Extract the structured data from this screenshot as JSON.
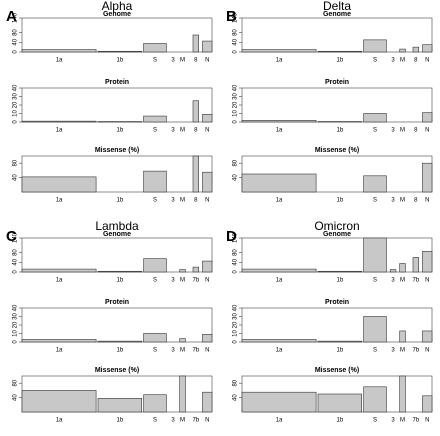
{
  "chart_data": [
    {
      "type": "bar",
      "title": "Alpha",
      "label": "A",
      "categories": [
        "1a",
        "1b",
        "S",
        "3",
        "M",
        "8",
        "N"
      ],
      "panels": [
        {
          "title": "Genome",
          "values": [
            10,
            3,
            35,
            null,
            null,
            70,
            45
          ],
          "ylim": [
            0,
            140
          ],
          "yticks": [
            0,
            40,
            80,
            140
          ]
        },
        {
          "title": "Protein",
          "values": [
            1,
            0.5,
            7,
            null,
            null,
            25,
            9
          ],
          "ylim": [
            0,
            40
          ],
          "yticks": [
            0,
            10,
            20,
            30,
            40
          ]
        },
        {
          "title": "Missense (%)",
          "values": [
            42,
            null,
            58,
            null,
            null,
            100,
            55
          ],
          "ylim": [
            0,
            100
          ],
          "yticks": [
            40,
            80
          ]
        }
      ]
    },
    {
      "type": "bar",
      "title": "Delta",
      "label": "B",
      "categories": [
        "1a",
        "1b",
        "S",
        "3",
        "M",
        "8",
        "N"
      ],
      "panels": [
        {
          "title": "Genome",
          "values": [
            10,
            3,
            50,
            null,
            12,
            20,
            30
          ],
          "ylim": [
            0,
            140
          ],
          "yticks": [
            0,
            40,
            80,
            140
          ]
        },
        {
          "title": "Protein",
          "values": [
            2,
            0.5,
            10,
            null,
            null,
            null,
            11
          ],
          "ylim": [
            0,
            40
          ],
          "yticks": [
            0,
            10,
            20,
            30,
            40
          ]
        },
        {
          "title": "Missense (%)",
          "values": [
            50,
            null,
            45,
            null,
            null,
            null,
            80
          ],
          "ylim": [
            0,
            100
          ],
          "yticks": [
            40,
            80
          ]
        }
      ]
    },
    {
      "type": "bar",
      "title": "Lambda",
      "label": "C",
      "categories": [
        "1a",
        "1b",
        "S",
        "3",
        "M",
        "7b",
        "N"
      ],
      "panels": [
        {
          "title": "Genome",
          "values": [
            12,
            3,
            55,
            null,
            10,
            20,
            45
          ],
          "ylim": [
            0,
            140
          ],
          "yticks": [
            0,
            40,
            80,
            140
          ]
        },
        {
          "title": "Protein",
          "values": [
            3,
            1,
            10,
            null,
            4,
            null,
            9
          ],
          "ylim": [
            0,
            40
          ],
          "yticks": [
            0,
            10,
            20,
            30,
            40
          ]
        },
        {
          "title": "Missense (%)",
          "values": [
            60,
            38,
            48,
            null,
            100,
            null,
            55
          ],
          "ylim": [
            0,
            100
          ],
          "yticks": [
            40,
            80
          ]
        }
      ]
    },
    {
      "type": "bar",
      "title": "Omicron",
      "label": "D",
      "categories": [
        "1a",
        "1b",
        "S",
        "3",
        "M",
        "7b",
        "N"
      ],
      "panels": [
        {
          "title": "Genome",
          "values": [
            12,
            3,
            140,
            10,
            35,
            60,
            85
          ],
          "ylim": [
            0,
            140
          ],
          "yticks": [
            0,
            40,
            80,
            140
          ]
        },
        {
          "title": "Protein",
          "values": [
            3,
            1,
            30,
            null,
            13,
            null,
            13
          ],
          "ylim": [
            0,
            40
          ],
          "yticks": [
            0,
            10,
            20,
            30,
            40
          ]
        },
        {
          "title": "Missense (%)",
          "values": [
            55,
            50,
            70,
            null,
            100,
            null,
            45
          ],
          "ylim": [
            0,
            100
          ],
          "yticks": [
            40,
            80
          ]
        }
      ]
    }
  ]
}
